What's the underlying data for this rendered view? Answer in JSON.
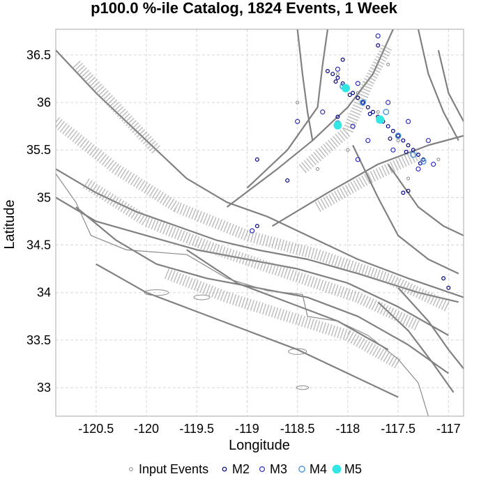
{
  "chart_data": {
    "type": "scatter",
    "title": "p100.0 %-ile Catalog, 1824 Events, 1 Week",
    "xlabel": "Longitude",
    "ylabel": "Latitude",
    "xlim": [
      -120.9,
      -116.85
    ],
    "ylim": [
      32.7,
      36.77
    ],
    "x_ticks": [
      {
        "value": -120.5,
        "label": "-120.5"
      },
      {
        "value": -120,
        "label": "-120"
      },
      {
        "value": -119.5,
        "label": "-119.5"
      },
      {
        "value": -119,
        "label": "-119"
      },
      {
        "value": -118.5,
        "label": "-118.5"
      },
      {
        "value": -118,
        "label": "-118"
      },
      {
        "value": -117.5,
        "label": "-117.5"
      },
      {
        "value": -117,
        "label": "-117"
      }
    ],
    "y_ticks": [
      {
        "value": 33,
        "label": "33"
      },
      {
        "value": 33.5,
        "label": "33.5"
      },
      {
        "value": 34,
        "label": "34"
      },
      {
        "value": 34.5,
        "label": "34.5"
      },
      {
        "value": 35,
        "label": "35"
      },
      {
        "value": 35.5,
        "label": "35.5"
      },
      {
        "value": 36,
        "label": "36"
      },
      {
        "value": 36.5,
        "label": "36.5"
      }
    ],
    "grid": true,
    "legend_position": "bottom",
    "colors": {
      "input": "#888888",
      "m2": "#000080",
      "m3": "#3030c0",
      "m4": "#3a8fe0",
      "m5": "#33e6e6",
      "fault": "#808080",
      "grid": "#d8d8d8"
    },
    "series": [
      {
        "name": "Input Events",
        "key": "input",
        "points": [
          [
            -118.1,
            36.3
          ],
          [
            -117.9,
            36.1
          ],
          [
            -117.7,
            35.9
          ],
          [
            -117.5,
            35.6
          ],
          [
            -118.0,
            35.5
          ],
          [
            -117.4,
            35.2
          ],
          [
            -118.5,
            36.0
          ],
          [
            -117.1,
            35.4
          ],
          [
            -117.6,
            36.4
          ],
          [
            -118.3,
            35.3
          ]
        ]
      },
      {
        "name": "M2",
        "key": "m2",
        "points": [
          [
            -118.2,
            36.33
          ],
          [
            -118.15,
            36.3
          ],
          [
            -118.1,
            36.26
          ],
          [
            -118.05,
            36.2
          ],
          [
            -118.0,
            36.15
          ],
          [
            -117.95,
            36.1
          ],
          [
            -117.9,
            36.05
          ],
          [
            -117.85,
            36.0
          ],
          [
            -117.8,
            35.95
          ],
          [
            -117.75,
            35.9
          ],
          [
            -117.7,
            35.85
          ],
          [
            -117.65,
            35.8
          ],
          [
            -117.6,
            35.75
          ],
          [
            -117.55,
            35.7
          ],
          [
            -117.5,
            35.65
          ],
          [
            -117.45,
            35.6
          ],
          [
            -117.4,
            35.55
          ],
          [
            -117.35,
            35.5
          ],
          [
            -117.3,
            35.45
          ],
          [
            -117.25,
            35.4
          ],
          [
            -118.12,
            36.22
          ],
          [
            -117.98,
            36.08
          ],
          [
            -117.78,
            35.88
          ],
          [
            -117.58,
            35.62
          ],
          [
            -117.42,
            35.48
          ],
          [
            -117.28,
            35.36
          ],
          [
            -118.6,
            35.18
          ],
          [
            -118.9,
            35.4
          ],
          [
            -118.1,
            35.85
          ],
          [
            -117.45,
            35.05
          ],
          [
            -117.4,
            35.07
          ],
          [
            -118.9,
            34.7
          ],
          [
            -118.05,
            36.45
          ],
          [
            -117.7,
            36.6
          ],
          [
            -117.05,
            34.15
          ],
          [
            -117.0,
            34.05
          ]
        ]
      },
      {
        "name": "M3",
        "key": "m3",
        "points": [
          [
            -118.1,
            36.35
          ],
          [
            -117.9,
            36.2
          ],
          [
            -117.6,
            36.0
          ],
          [
            -117.4,
            35.8
          ],
          [
            -117.2,
            35.6
          ],
          [
            -117.8,
            35.6
          ],
          [
            -118.25,
            35.9
          ],
          [
            -117.95,
            35.75
          ],
          [
            -117.55,
            35.5
          ],
          [
            -117.15,
            35.35
          ],
          [
            -118.5,
            35.8
          ],
          [
            -117.7,
            36.7
          ],
          [
            -118.95,
            34.65
          ],
          [
            -117.9,
            35.4
          ],
          [
            -117.3,
            35.3
          ]
        ]
      },
      {
        "name": "M4",
        "key": "m4",
        "points": [
          [
            -118.1,
            35.78
          ],
          [
            -118.05,
            36.17
          ],
          [
            -117.68,
            35.82
          ],
          [
            -117.62,
            35.9
          ],
          [
            -117.35,
            35.45
          ],
          [
            -117.85,
            36.0
          ],
          [
            -117.5,
            35.65
          ],
          [
            -117.25,
            35.38
          ]
        ]
      },
      {
        "name": "M5",
        "key": "m5",
        "points": [
          [
            -118.02,
            36.15
          ],
          [
            -118.1,
            35.76
          ],
          [
            -117.68,
            35.82
          ]
        ]
      }
    ]
  }
}
